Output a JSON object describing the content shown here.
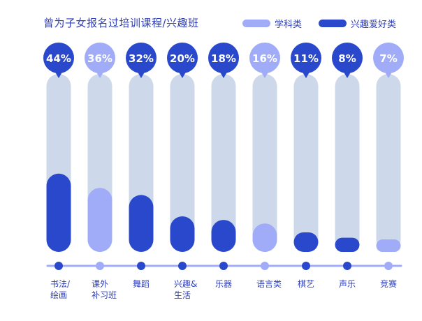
{
  "chart_data": {
    "type": "bar",
    "title": "曾为子女报名过培训课程/兴趣班",
    "categories": [
      "书法/\n绘画",
      "课外\n补习班",
      "舞蹈",
      "兴趣&\n生活",
      "乐器",
      "语言类",
      "棋艺",
      "声乐",
      "竞赛"
    ],
    "values": [
      44,
      36,
      32,
      20,
      18,
      16,
      11,
      8,
      7
    ],
    "value_labels": [
      "44%",
      "36%",
      "32%",
      "20%",
      "18%",
      "16%",
      "11%",
      "8%",
      "7%"
    ],
    "category_type": [
      "兴趣爱好类",
      "学科类",
      "兴趣爱好类",
      "兴趣爱好类",
      "兴趣爱好类",
      "学科类",
      "兴趣爱好类",
      "兴趣爱好类",
      "学科类"
    ],
    "unit": "%",
    "ylim": [
      0,
      100
    ],
    "legend": {
      "position": "top-right",
      "entries": [
        {
          "name": "学科类",
          "color": "#a0acf8"
        },
        {
          "name": "兴趣爱好类",
          "color": "#2a48cc"
        }
      ]
    },
    "grid": false
  },
  "colors": {
    "track": "#cdd9ea",
    "axis": "#a0acf8",
    "title": "#2f3fb8"
  }
}
